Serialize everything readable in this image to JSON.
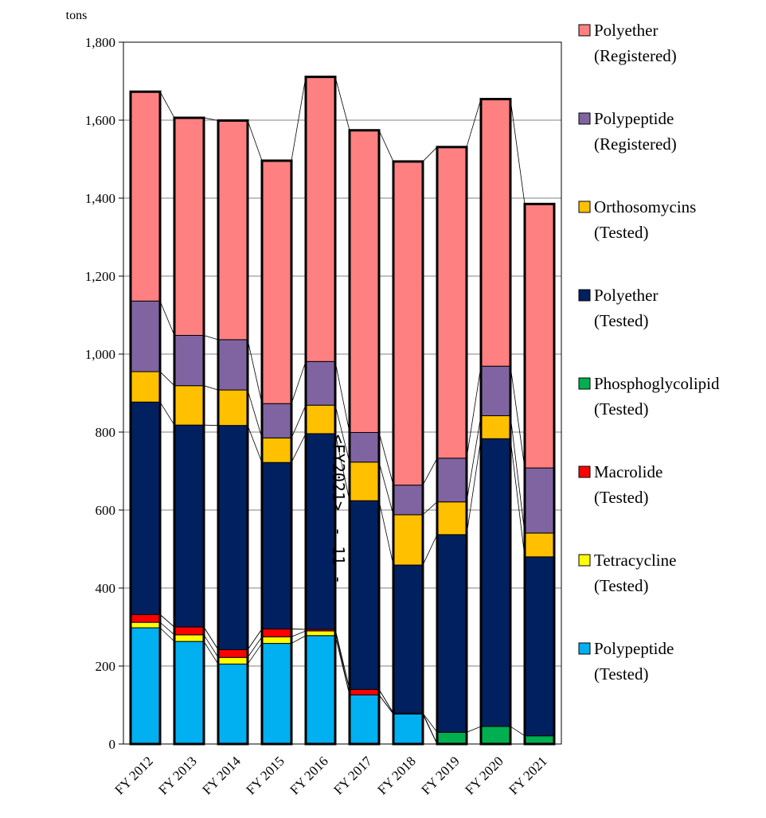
{
  "page": {
    "side_label": "<FY2021>　- 11 -"
  },
  "chart_data": {
    "type": "bar",
    "stacked": true,
    "unit": "tons",
    "ylim": [
      0,
      1800
    ],
    "yticks": [
      0,
      200,
      400,
      600,
      800,
      1000,
      1200,
      1400,
      1600,
      1800
    ],
    "ytick_labels": [
      "0",
      "200",
      "400",
      "600",
      "800",
      "1,000",
      "1,200",
      "1,400",
      "1,600",
      "1,800"
    ],
    "grid": true,
    "legend_position": "right",
    "categories": [
      "FY 2012",
      "FY 2013",
      "FY 2014",
      "FY 2015",
      "FY 2016",
      "FY 2017",
      "FY 2018",
      "FY 2019",
      "FY 2020",
      "FY 2021"
    ],
    "series": [
      {
        "name": "Polypeptide",
        "sub": "(Tested)",
        "color": "#00B0F0",
        "values": [
          298,
          263,
          205,
          258,
          278,
          126,
          77,
          0,
          0,
          0
        ]
      },
      {
        "name": "Tetracycline",
        "sub": "(Tested)",
        "color": "#FFFF00",
        "values": [
          14,
          17,
          17,
          17,
          12,
          0,
          0,
          0,
          0,
          0
        ]
      },
      {
        "name": "Macrolide",
        "sub": "(Tested)",
        "color": "#FF0000",
        "values": [
          20,
          20,
          20,
          20,
          4,
          14,
          2,
          0,
          0,
          0
        ]
      },
      {
        "name": "Phosphoglycolipid",
        "sub": "(Tested)",
        "color": "#00B050",
        "values": [
          0,
          0,
          0,
          0,
          0,
          0,
          0,
          30,
          45,
          21
        ]
      },
      {
        "name": "Polyether",
        "sub": "(Tested)",
        "color": "#002060",
        "values": [
          545,
          518,
          575,
          427,
          502,
          484,
          380,
          507,
          738,
          459
        ]
      },
      {
        "name": "Orthosomycins",
        "sub": "(Tested)",
        "color": "#FFC000",
        "values": [
          78,
          101,
          91,
          63,
          73,
          99,
          129,
          84,
          59,
          61
        ]
      },
      {
        "name": "Polypeptide",
        "sub": "(Registered)",
        "color": "#8064A2",
        "values": [
          181,
          129,
          129,
          88,
          112,
          76,
          76,
          112,
          127,
          167
        ]
      },
      {
        "name": "Polyether",
        "sub": "(Registered)",
        "color": "#FF8080",
        "values": [
          537,
          558,
          562,
          623,
          730,
          775,
          830,
          798,
          685,
          677
        ]
      }
    ],
    "legend_order": [
      7,
      6,
      5,
      4,
      3,
      2,
      1,
      0
    ]
  }
}
